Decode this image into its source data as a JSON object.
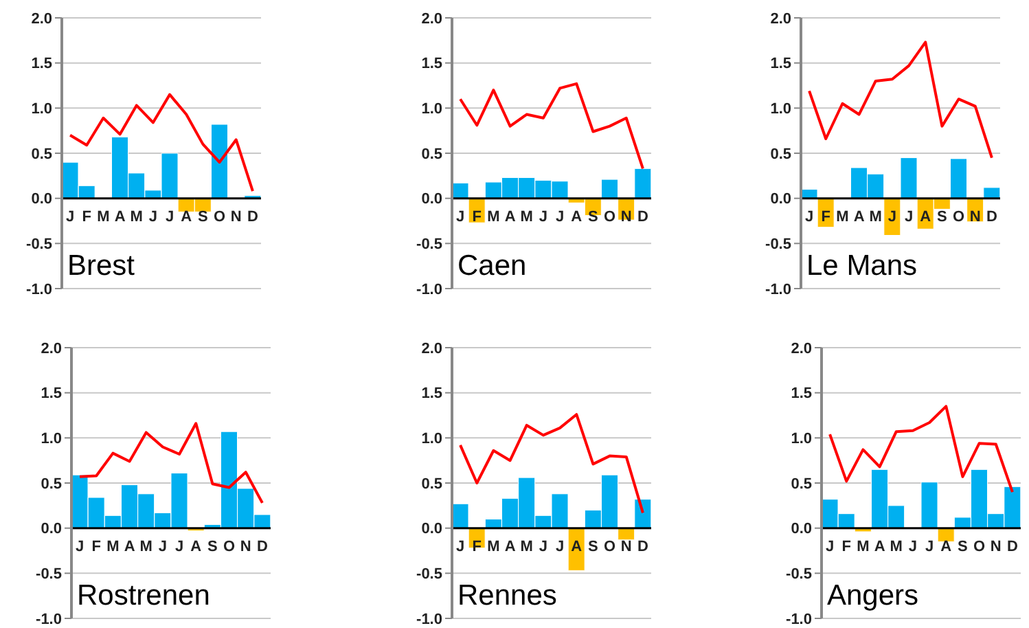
{
  "chart_data": [
    {
      "type": "bar",
      "title": "Brest",
      "categories": [
        "J",
        "F",
        "M",
        "A",
        "M",
        "J",
        "J",
        "A",
        "S",
        "O",
        "N",
        "D"
      ],
      "ylim": [
        -1,
        2
      ],
      "yticks": [
        {
          "value": -1,
          "label": "-1.0"
        },
        {
          "value": -0.5,
          "label": "-0.5"
        },
        {
          "value": 0,
          "label": "0.0"
        },
        {
          "value": 0.5,
          "label": "0.5"
        },
        {
          "value": 1,
          "label": "1.0"
        },
        {
          "value": 1.5,
          "label": "1.5"
        },
        {
          "value": 2,
          "label": "2.0"
        }
      ],
      "grid": "y",
      "series": [
        {
          "values": [
            0.4,
            0.14,
            0,
            0.68,
            0.28,
            0.09,
            0.5,
            -0.15,
            -0.15,
            0.82,
            0,
            0.03
          ],
          "colors": [
            "#00b0f0",
            "#00b0f0",
            "#00b0f0",
            "#00b0f0",
            "#00b0f0",
            "#00b0f0",
            "#00b0f0",
            "#ffc000",
            "#ffc000",
            "#00b0f0",
            "#00b0f0",
            "#00b0f0"
          ]
        },
        {
          "type": "line",
          "color": "#ff0000",
          "values": [
            0.7,
            0.59,
            0.89,
            0.71,
            1.03,
            0.84,
            1.15,
            0.93,
            0.6,
            0.4,
            0.65,
            0.08
          ]
        }
      ]
    },
    {
      "type": "bar",
      "title": "Caen",
      "categories": [
        "J",
        "F",
        "M",
        "A",
        "M",
        "J",
        "J",
        "A",
        "S",
        "O",
        "N",
        "D"
      ],
      "ylim": [
        -1,
        2
      ],
      "yticks": [
        {
          "value": -1,
          "label": "-1.0"
        },
        {
          "value": -0.5,
          "label": "-0.5"
        },
        {
          "value": 0,
          "label": "0.0"
        },
        {
          "value": 0.5,
          "label": "0.5"
        },
        {
          "value": 1,
          "label": "1.0"
        },
        {
          "value": 1.5,
          "label": "1.5"
        },
        {
          "value": 2,
          "label": "2.0"
        }
      ],
      "grid": "y",
      "series": [
        {
          "values": [
            0.17,
            -0.27,
            0.18,
            0.23,
            0.23,
            0.2,
            0.19,
            -0.05,
            -0.19,
            0.21,
            -0.24,
            0.33
          ],
          "colors": [
            "#00b0f0",
            "#ffc000",
            "#00b0f0",
            "#00b0f0",
            "#00b0f0",
            "#00b0f0",
            "#00b0f0",
            "#ffc000",
            "#ffc000",
            "#00b0f0",
            "#ffc000",
            "#00b0f0"
          ]
        },
        {
          "type": "line",
          "color": "#ff0000",
          "values": [
            1.1,
            0.81,
            1.2,
            0.8,
            0.93,
            0.89,
            1.22,
            1.27,
            0.74,
            0.8,
            0.89,
            0.33
          ]
        }
      ]
    },
    {
      "type": "bar",
      "title": "Le Mans",
      "categories": [
        "J",
        "F",
        "M",
        "A",
        "M",
        "J",
        "J",
        "A",
        "S",
        "O",
        "N",
        "D"
      ],
      "ylim": [
        -1,
        2
      ],
      "yticks": [
        {
          "value": -1,
          "label": "-1.0"
        },
        {
          "value": -0.5,
          "label": "-0.5"
        },
        {
          "value": 0,
          "label": "0.0"
        },
        {
          "value": 0.5,
          "label": "0.5"
        },
        {
          "value": 1,
          "label": "1.0"
        },
        {
          "value": 1.5,
          "label": "1.5"
        },
        {
          "value": 2,
          "label": "2.0"
        }
      ],
      "grid": "y",
      "series": [
        {
          "values": [
            0.1,
            -0.32,
            0,
            0.34,
            0.27,
            -0.41,
            0.45,
            -0.34,
            -0.12,
            0.44,
            -0.26,
            0.12
          ],
          "colors": [
            "#00b0f0",
            "#ffc000",
            "#00b0f0",
            "#00b0f0",
            "#00b0f0",
            "#ffc000",
            "#00b0f0",
            "#ffc000",
            "#ffc000",
            "#00b0f0",
            "#ffc000",
            "#00b0f0"
          ]
        },
        {
          "type": "line",
          "color": "#ff0000",
          "values": [
            1.19,
            0.66,
            1.05,
            0.93,
            1.3,
            1.32,
            1.47,
            1.73,
            0.8,
            1.1,
            1.02,
            0.45
          ]
        }
      ]
    },
    {
      "type": "bar",
      "title": "Rostrenen",
      "categories": [
        "J",
        "F",
        "M",
        "A",
        "M",
        "J",
        "J",
        "A",
        "S",
        "O",
        "N",
        "D"
      ],
      "ylim": [
        -1,
        2
      ],
      "yticks": [
        {
          "value": -1,
          "label": "-1.0"
        },
        {
          "value": -0.5,
          "label": "-0.5"
        },
        {
          "value": 0,
          "label": "0.0"
        },
        {
          "value": 0.5,
          "label": "0.5"
        },
        {
          "value": 1,
          "label": "1.0"
        },
        {
          "value": 1.5,
          "label": "1.5"
        },
        {
          "value": 2,
          "label": "2.0"
        }
      ],
      "grid": "y",
      "series": [
        {
          "values": [
            0.59,
            0.34,
            0.14,
            0.48,
            0.38,
            0.17,
            0.61,
            -0.03,
            0.04,
            1.07,
            0.44,
            0.15
          ],
          "colors": [
            "#00b0f0",
            "#00b0f0",
            "#00b0f0",
            "#00b0f0",
            "#00b0f0",
            "#00b0f0",
            "#00b0f0",
            "#ffc000",
            "#00b0f0",
            "#00b0f0",
            "#00b0f0",
            "#00b0f0"
          ]
        },
        {
          "type": "line",
          "color": "#ff0000",
          "values": [
            0.57,
            0.58,
            0.83,
            0.74,
            1.06,
            0.9,
            0.82,
            1.16,
            0.49,
            0.45,
            0.62,
            0.28
          ]
        }
      ]
    },
    {
      "type": "bar",
      "title": "Rennes",
      "categories": [
        "J",
        "F",
        "M",
        "A",
        "M",
        "J",
        "J",
        "A",
        "S",
        "O",
        "N",
        "D"
      ],
      "ylim": [
        -1,
        2
      ],
      "yticks": [
        {
          "value": -1,
          "label": "-1.0"
        },
        {
          "value": -0.5,
          "label": "-0.5"
        },
        {
          "value": 0,
          "label": "0.0"
        },
        {
          "value": 0.5,
          "label": "0.5"
        },
        {
          "value": 1,
          "label": "1.0"
        },
        {
          "value": 1.5,
          "label": "1.5"
        },
        {
          "value": 2,
          "label": "2.0"
        }
      ],
      "grid": "y",
      "series": [
        {
          "values": [
            0.27,
            -0.22,
            0.1,
            0.33,
            0.56,
            0.14,
            0.38,
            -0.47,
            0.2,
            0.59,
            -0.13,
            0.32
          ],
          "colors": [
            "#00b0f0",
            "#ffc000",
            "#00b0f0",
            "#00b0f0",
            "#00b0f0",
            "#00b0f0",
            "#00b0f0",
            "#ffc000",
            "#00b0f0",
            "#00b0f0",
            "#ffc000",
            "#00b0f0"
          ]
        },
        {
          "type": "line",
          "color": "#ff0000",
          "values": [
            0.92,
            0.5,
            0.86,
            0.75,
            1.14,
            1.03,
            1.11,
            1.26,
            0.71,
            0.8,
            0.79,
            0.17
          ]
        }
      ]
    },
    {
      "type": "bar",
      "title": "Angers",
      "categories": [
        "J",
        "F",
        "M",
        "A",
        "M",
        "J",
        "J",
        "A",
        "S",
        "O",
        "N",
        "D"
      ],
      "ylim": [
        -1,
        2
      ],
      "yticks": [
        {
          "value": -1,
          "label": "-1.0"
        },
        {
          "value": -0.5,
          "label": "-0.5"
        },
        {
          "value": 0,
          "label": "0.0"
        },
        {
          "value": 0.5,
          "label": "0.5"
        },
        {
          "value": 1,
          "label": "1.0"
        },
        {
          "value": 1.5,
          "label": "1.5"
        },
        {
          "value": 2,
          "label": "2.0"
        }
      ],
      "grid": "y",
      "series": [
        {
          "values": [
            0.32,
            0.16,
            -0.04,
            0.65,
            0.25,
            0,
            0.51,
            -0.15,
            0.12,
            0.65,
            0.16,
            0.46
          ],
          "colors": [
            "#00b0f0",
            "#00b0f0",
            "#ffc000",
            "#00b0f0",
            "#00b0f0",
            "#00b0f0",
            "#00b0f0",
            "#ffc000",
            "#00b0f0",
            "#00b0f0",
            "#00b0f0",
            "#00b0f0"
          ]
        },
        {
          "type": "line",
          "color": "#ff0000",
          "values": [
            1.04,
            0.52,
            0.87,
            0.68,
            1.07,
            1.08,
            1.17,
            1.35,
            0.57,
            0.94,
            0.93,
            0.4
          ]
        }
      ]
    }
  ]
}
